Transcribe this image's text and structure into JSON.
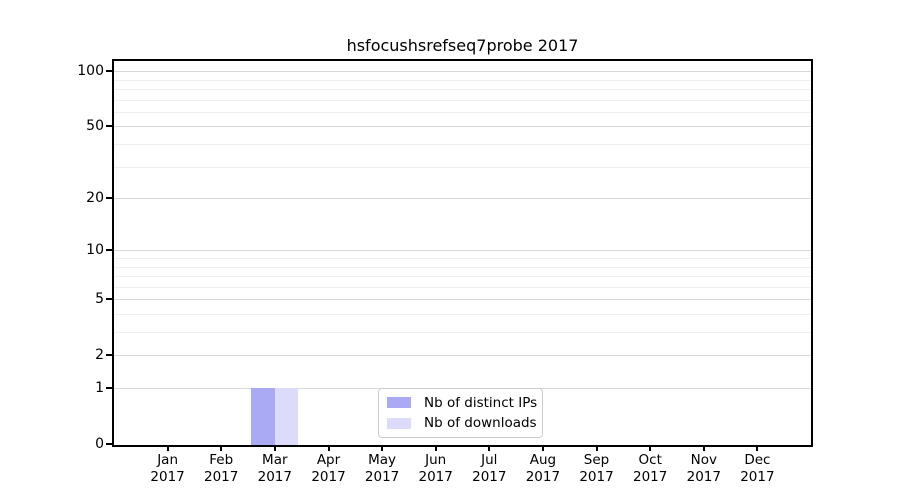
{
  "chart_data": {
    "type": "bar",
    "title": "hsfocushsrefseq7probe 2017",
    "categories": [
      "Jan 2017",
      "Feb 2017",
      "Mar 2017",
      "Apr 2017",
      "May 2017",
      "Jun 2017",
      "Jul 2017",
      "Aug 2017",
      "Sep 2017",
      "Oct 2017",
      "Nov 2017",
      "Dec 2017"
    ],
    "series": [
      {
        "name": "Nb of distinct IPs",
        "color": "#aaaaf4",
        "values": [
          0,
          0,
          1,
          0,
          0,
          0,
          0,
          0,
          0,
          0,
          0,
          0
        ]
      },
      {
        "name": "Nb of downloads",
        "color": "#dcdcfa",
        "values": [
          0,
          0,
          1,
          0,
          0,
          0,
          0,
          0,
          0,
          0,
          0,
          0
        ]
      }
    ],
    "y_axis": {
      "scale": "log10(1+y)",
      "major_ticks": [
        0,
        1,
        2,
        5,
        10,
        20,
        50,
        100
      ],
      "minor_gridlines": [
        3,
        4,
        6,
        7,
        8,
        9,
        30,
        40,
        60,
        70,
        80,
        90
      ],
      "ylim": [
        0,
        112
      ]
    },
    "legend": {
      "position": "bottom-center"
    },
    "grid": {
      "major_color": "#d8d8d8",
      "minor_color": "#efefef"
    },
    "colors": {
      "axis": "#000000",
      "background": "#ffffff"
    }
  }
}
